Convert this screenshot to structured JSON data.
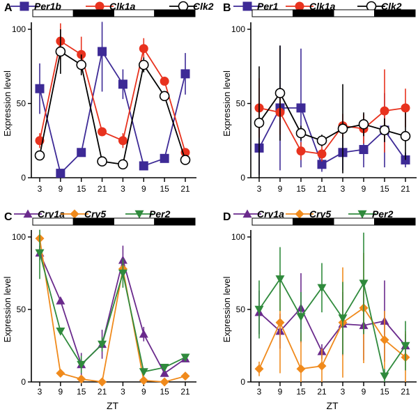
{
  "chart_data": [
    {
      "panel": "A",
      "type": "line",
      "ylabel": "Expression level",
      "xlabel": "",
      "ylim": [
        0,
        100
      ],
      "yticks": [
        0,
        50,
        100
      ],
      "categories": [
        "3",
        "9",
        "15",
        "21",
        "3",
        "9",
        "15",
        "21"
      ],
      "light_bar": [
        "light",
        "dark",
        "light",
        "dark"
      ],
      "series": [
        {
          "name": "Per1b",
          "color": "#3d2a96",
          "marker": "square",
          "values": [
            60,
            3,
            17,
            85,
            63,
            8,
            13,
            70
          ],
          "errors": [
            17,
            0,
            0,
            27,
            10,
            0,
            0,
            14
          ]
        },
        {
          "name": "Clk1a",
          "color": "#e8321e",
          "marker": "circle",
          "values": [
            25,
            92,
            83,
            31,
            25,
            87,
            65,
            17
          ],
          "errors": [
            5,
            12,
            12,
            0,
            5,
            7,
            0,
            0
          ]
        },
        {
          "name": "Clk2",
          "color": "#000000",
          "marker": "open-circle",
          "values": [
            15,
            85,
            76,
            11,
            9,
            76,
            55,
            12
          ],
          "errors": [
            3,
            15,
            7,
            0,
            0,
            5,
            0,
            0
          ]
        }
      ]
    },
    {
      "panel": "B",
      "type": "line",
      "ylabel": "Expression level",
      "xlabel": "",
      "ylim": [
        0,
        100
      ],
      "yticks": [
        0,
        50,
        100
      ],
      "categories": [
        "3",
        "9",
        "15",
        "21",
        "3",
        "9",
        "15",
        "21"
      ],
      "light_bar": [
        "light",
        "dark",
        "light",
        "dark"
      ],
      "series": [
        {
          "name": "Per1",
          "color": "#3d2a96",
          "marker": "square",
          "values": [
            20,
            47,
            47,
            9,
            17,
            19,
            32,
            12
          ],
          "errors": [
            18,
            42,
            40,
            5,
            12,
            12,
            25,
            5
          ]
        },
        {
          "name": "Clk1a",
          "color": "#e8321e",
          "marker": "circle",
          "values": [
            47,
            44,
            18,
            16,
            35,
            33,
            45,
            47
          ],
          "errors": [
            20,
            15,
            6,
            5,
            8,
            10,
            28,
            13
          ]
        },
        {
          "name": "Clk2",
          "color": "#000000",
          "marker": "open-circle",
          "values": [
            37,
            57,
            30,
            25,
            33,
            36,
            32,
            28
          ],
          "errors": [
            38,
            32,
            5,
            4,
            30,
            8,
            8,
            16
          ]
        }
      ]
    },
    {
      "panel": "C",
      "type": "line",
      "ylabel": "Expression level",
      "xlabel": "ZT",
      "ylim": [
        0,
        100
      ],
      "yticks": [
        0,
        50,
        100
      ],
      "categories": [
        "3",
        "9",
        "15",
        "21",
        "3",
        "9",
        "15",
        "21"
      ],
      "light_bar": [
        "light",
        "dark",
        "light",
        "dark"
      ],
      "series": [
        {
          "name": "Cry1a",
          "color": "#6a2a8c",
          "marker": "triangle-up",
          "values": [
            89,
            56,
            12,
            26,
            84,
            33,
            6,
            16
          ],
          "errors": [
            5,
            0,
            8,
            10,
            10,
            5,
            0,
            0
          ]
        },
        {
          "name": "Cry5",
          "color": "#f08a1c",
          "marker": "diamond",
          "values": [
            99,
            6,
            2,
            0,
            78,
            1,
            0,
            4
          ],
          "errors": [
            0,
            0,
            0,
            0,
            5,
            0,
            0,
            0
          ]
        },
        {
          "name": "Per2",
          "color": "#2f8a3c",
          "marker": "triangle-down",
          "values": [
            89,
            35,
            12,
            26,
            75,
            7,
            10,
            17
          ],
          "errors": [
            18,
            0,
            6,
            5,
            10,
            0,
            0,
            0
          ]
        }
      ]
    },
    {
      "panel": "D",
      "type": "line",
      "ylabel": "Expression level",
      "xlabel": "ZT",
      "ylim": [
        0,
        100
      ],
      "yticks": [
        0,
        50,
        100
      ],
      "categories": [
        "3",
        "9",
        "15",
        "21",
        "3",
        "9",
        "15",
        "21"
      ],
      "light_bar": [
        "light",
        "dark",
        "light",
        "dark"
      ],
      "series": [
        {
          "name": "Cry1a",
          "color": "#6a2a8c",
          "marker": "triangle-up",
          "values": [
            48,
            35,
            51,
            21,
            40,
            39,
            42,
            25
          ],
          "errors": [
            15,
            12,
            24,
            5,
            22,
            24,
            28,
            8
          ]
        },
        {
          "name": "Cry5",
          "color": "#f08a1c",
          "marker": "diamond",
          "values": [
            9,
            41,
            9,
            11,
            41,
            51,
            29,
            17
          ],
          "errors": [
            5,
            35,
            25,
            12,
            38,
            38,
            20,
            18
          ]
        },
        {
          "name": "Per2",
          "color": "#2f8a3c",
          "marker": "triangle-down",
          "values": [
            50,
            71,
            45,
            65,
            44,
            68,
            4,
            25
          ],
          "errors": [
            20,
            22,
            17,
            17,
            25,
            35,
            5,
            17
          ]
        }
      ]
    }
  ]
}
